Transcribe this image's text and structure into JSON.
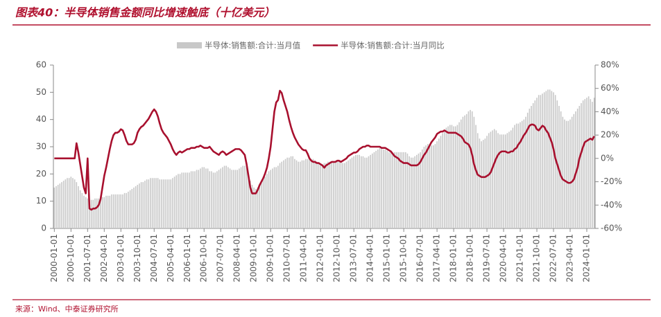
{
  "chart_data": {
    "type": "bar-line",
    "title": "图表40：半导体销售金额同比增速触底（十亿美元）",
    "source": "来源：Wind、中泰证券研究所",
    "categories": [
      "2000-01-01",
      null,
      null,
      null,
      null,
      null,
      null,
      null,
      null,
      "2000-10-01",
      null,
      null,
      null,
      null,
      null,
      null,
      null,
      null,
      "2001-07-01",
      null,
      null,
      null,
      null,
      null,
      null,
      null,
      null,
      "2002-04-01",
      null,
      null,
      null,
      null,
      null,
      null,
      null,
      null,
      "2003-01-01",
      null,
      null,
      null,
      null,
      null,
      null,
      null,
      null,
      "2003-10-01",
      null,
      null,
      null,
      null,
      null,
      null,
      null,
      null,
      "2004-07-01",
      null,
      null,
      null,
      null,
      null,
      null,
      null,
      null,
      "2005-04-01",
      null,
      null,
      null,
      null,
      null,
      null,
      null,
      null,
      "2006-01-01",
      null,
      null,
      null,
      null,
      null,
      null,
      null,
      null,
      "2006-10-01",
      null,
      null,
      null,
      null,
      null,
      null,
      null,
      null,
      "2007-07-01",
      null,
      null,
      null,
      null,
      null,
      null,
      null,
      null,
      "2008-04-01",
      null,
      null,
      null,
      null,
      null,
      null,
      null,
      null,
      "2009-01-01",
      null,
      null,
      null,
      null,
      null,
      null,
      null,
      null,
      "2009-10-01",
      null,
      null,
      null,
      null,
      null,
      null,
      null,
      null,
      "2010-07-01",
      null,
      null,
      null,
      null,
      null,
      null,
      null,
      null,
      "2011-04-01",
      null,
      null,
      null,
      null,
      null,
      null,
      null,
      null,
      "2012-01-01",
      null,
      null,
      null,
      null,
      null,
      null,
      null,
      null,
      "2012-10-01",
      null,
      null,
      null,
      null,
      null,
      null,
      null,
      null,
      "2013-07-01",
      null,
      null,
      null,
      null,
      null,
      null,
      null,
      null,
      "2014-04-01",
      null,
      null,
      null,
      null,
      null,
      null,
      null,
      null,
      "2015-01-01",
      null,
      null,
      null,
      null,
      null,
      null,
      null,
      null,
      "2015-10-01",
      null,
      null,
      null,
      null,
      null,
      null,
      null,
      null,
      "2016-07-01",
      null,
      null,
      null,
      null,
      null,
      null,
      null,
      null,
      "2017-04-01",
      null,
      null,
      null,
      null,
      null,
      null,
      null,
      null,
      "2018-01-01",
      null,
      null,
      null,
      null,
      null,
      null,
      null,
      null,
      "2018-10-01",
      null,
      null,
      null,
      null,
      null,
      null,
      null,
      null,
      "2019-07-01",
      null,
      null,
      null,
      null,
      null,
      null,
      null,
      null,
      "2020-04-01",
      null,
      null,
      null,
      null,
      null,
      null,
      null,
      null,
      "2021-01-01",
      null,
      null,
      null,
      null,
      null,
      null,
      null,
      null,
      "2021-10-01",
      null,
      null,
      null,
      null,
      null,
      null,
      null,
      null,
      "2022-07-01",
      null,
      null,
      null,
      null,
      null,
      null,
      null,
      null,
      "2023-04-01",
      null,
      null,
      null,
      null,
      null,
      null,
      null,
      null,
      "2024-01-01",
      null,
      null,
      null,
      null
    ],
    "series": [
      {
        "name": "半导体:销售额:合计:当月值",
        "type": "bar",
        "color": "#c8c8c8",
        "values": [
          15,
          15.5,
          16,
          16.5,
          17,
          17.5,
          18,
          18.5,
          18.5,
          19,
          18.5,
          18,
          17,
          15.5,
          14,
          13,
          12,
          11.5,
          11,
          10.5,
          10.5,
          10.5,
          11,
          11,
          11,
          11,
          11.5,
          11.5,
          12,
          12,
          12,
          12.5,
          12.5,
          12.5,
          12.5,
          12.5,
          12.5,
          12.5,
          13,
          13,
          13.5,
          14,
          14.5,
          15,
          15.5,
          16,
          16.5,
          17,
          17,
          17.5,
          18,
          18,
          18.5,
          18.5,
          18.5,
          18.5,
          18.5,
          18,
          18,
          18,
          18,
          18,
          18,
          18,
          18.5,
          19,
          19.5,
          20,
          20,
          20.5,
          20.5,
          20.5,
          20.5,
          20.5,
          21,
          21,
          21,
          21.5,
          21.5,
          22,
          22.5,
          22.5,
          22,
          22,
          21,
          21,
          20.5,
          20.5,
          21,
          21.5,
          22,
          22.5,
          23,
          23,
          22.5,
          22,
          21.5,
          21.5,
          21.5,
          21.5,
          22,
          22.5,
          23,
          23,
          22.5,
          20,
          17.5,
          16,
          15,
          14.5,
          15,
          16,
          17,
          18,
          19,
          20,
          21,
          21.5,
          22,
          22.5,
          22.5,
          23,
          24,
          24.5,
          25,
          25.5,
          26,
          26,
          26.5,
          26.5,
          25.5,
          25,
          24.5,
          24.5,
          25,
          25,
          25.5,
          25.5,
          25.5,
          25.5,
          25.5,
          25,
          24.5,
          24,
          23.5,
          23.5,
          24,
          24,
          24.5,
          24.5,
          24.5,
          24.5,
          24.5,
          24.5,
          24.5,
          24.5,
          24,
          24,
          24.5,
          25,
          25.5,
          26,
          26.5,
          27,
          27,
          27,
          26.5,
          26.5,
          26,
          26,
          26.5,
          27,
          27.5,
          28,
          28.5,
          29,
          29.5,
          29.5,
          29,
          29,
          28.5,
          28,
          28,
          28,
          28,
          28,
          28,
          28,
          28,
          28,
          28,
          27.5,
          26.5,
          26,
          26,
          26.5,
          27,
          27.5,
          28,
          29,
          30,
          30.5,
          31,
          31,
          30.5,
          30.5,
          31,
          32,
          33,
          34,
          35,
          36,
          37,
          37.5,
          38,
          38,
          37.5,
          37.5,
          38,
          39,
          40,
          41,
          41.5,
          42,
          43,
          43.5,
          43,
          41,
          38,
          35,
          33,
          32,
          32.5,
          33,
          34,
          35,
          35.5,
          36,
          36.5,
          36,
          35,
          34.5,
          34.5,
          34.5,
          34.5,
          35,
          35.5,
          36,
          37,
          38,
          38.5,
          38.5,
          39,
          39.5,
          40,
          41,
          42.5,
          44,
          45,
          46,
          47,
          48,
          49,
          49,
          49.5,
          50,
          50.5,
          51,
          51,
          50.5,
          50,
          49,
          47,
          45,
          43,
          41,
          40,
          39.5,
          39.5,
          40,
          41,
          42,
          43,
          44,
          45,
          46,
          47,
          47.5,
          48,
          48.5,
          47.5,
          46.5,
          48
        ]
      },
      {
        "name": "半导体:销售额:合计:当月同比",
        "type": "line",
        "axis": "y2",
        "color": "#a8102e",
        "values": [
          0,
          0,
          0,
          0,
          0,
          0,
          0,
          0,
          0,
          0,
          0,
          0,
          13,
          5,
          -5,
          -15,
          -25,
          -30,
          0,
          -43,
          -44,
          -43,
          -43,
          -42,
          -40,
          -35,
          -25,
          -15,
          -8,
          0,
          8,
          15,
          20,
          22,
          22,
          23,
          25,
          24,
          20,
          15,
          12,
          12,
          12,
          13,
          16,
          22,
          25,
          27,
          28,
          30,
          32,
          34,
          37,
          40,
          42,
          40,
          36,
          30,
          25,
          22,
          20,
          18,
          15,
          12,
          8,
          5,
          3,
          5,
          6,
          5,
          6,
          7,
          8,
          8,
          9,
          9,
          9,
          10,
          10,
          11,
          10,
          9,
          9,
          9,
          10,
          8,
          6,
          5,
          4,
          3,
          5,
          6,
          5,
          3,
          4,
          5,
          6,
          7,
          8,
          8,
          8,
          7,
          5,
          3,
          -5,
          -15,
          -25,
          -30,
          -30,
          -30,
          -27,
          -23,
          -20,
          -17,
          -13,
          -8,
          0,
          10,
          25,
          40,
          48,
          50,
          58,
          56,
          50,
          45,
          40,
          33,
          27,
          22,
          18,
          15,
          12,
          10,
          8,
          7,
          7,
          4,
          0,
          -2,
          -3,
          -3,
          -4,
          -4,
          -5,
          -6,
          -8,
          -6,
          -5,
          -4,
          -3,
          -3,
          -3,
          -2,
          -2,
          -3,
          -2,
          -1,
          0,
          2,
          3,
          4,
          5,
          5,
          6,
          8,
          9,
          10,
          10,
          11,
          11,
          10,
          10,
          10,
          10,
          10,
          10,
          9,
          9,
          9,
          8,
          7,
          6,
          4,
          2,
          1,
          0,
          -2,
          -3,
          -4,
          -4,
          -4,
          -5,
          -6,
          -6,
          -6,
          -6,
          -5,
          -3,
          0,
          3,
          5,
          8,
          11,
          14,
          16,
          18,
          21,
          22,
          23,
          23,
          24,
          23,
          22,
          22,
          22,
          22,
          22,
          21,
          20,
          19,
          17,
          14,
          13,
          12,
          9,
          3,
          -5,
          -10,
          -14,
          -15,
          -16,
          -16,
          -16,
          -15,
          -14,
          -12,
          -8,
          -4,
          0,
          3,
          5,
          6,
          6,
          6,
          5,
          5,
          6,
          6,
          8,
          9,
          12,
          14,
          17,
          20,
          22,
          25,
          28,
          29,
          29,
          28,
          25,
          24,
          26,
          28,
          27,
          24,
          22,
          18,
          14,
          8,
          0,
          -5,
          -10,
          -15,
          -18,
          -19,
          -20,
          -21,
          -21,
          -20,
          -18,
          -13,
          -8,
          0,
          5,
          10,
          14,
          15,
          16,
          17,
          16,
          19
        ]
      }
    ],
    "ylim": [
      0,
      60
    ],
    "yticks": [
      0,
      10,
      20,
      30,
      40,
      50,
      60
    ],
    "y2lim": [
      -60,
      80
    ],
    "y2ticks": [
      {
        "value": -60,
        "label": "-60%"
      },
      {
        "value": -40,
        "label": "-40%"
      },
      {
        "value": -20,
        "label": "-20%"
      },
      {
        "value": 0,
        "label": "0%"
      },
      {
        "value": 20,
        "label": "20%"
      },
      {
        "value": 40,
        "label": "40%"
      },
      {
        "value": 60,
        "label": "60%"
      },
      {
        "value": 80,
        "label": "80%"
      }
    ],
    "legend": "top"
  }
}
